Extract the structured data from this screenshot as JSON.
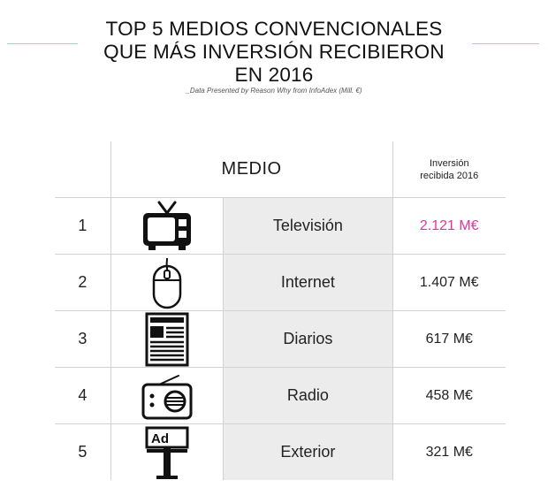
{
  "title_lines": [
    "TOP 5 MEDIOS CONVENCIONALES",
    "QUE MÁS INVERSIÓN RECIBIERON",
    "EN 2016"
  ],
  "subtitle": "_Data Presented by Reason Why from InfoAdex (Mill. €)",
  "colors": {
    "highlight": "#e6349b",
    "decor_line": "#9fd0ee",
    "name_cell_bg": "#ececec"
  },
  "table": {
    "header_medio": "MEDIO",
    "header_inversion_line1": "Inversión",
    "header_inversion_line2": "recibida 2016",
    "rows": [
      {
        "rank": "1",
        "icon": "tv-icon",
        "name": "Televisión",
        "value": "2.121 M€"
      },
      {
        "rank": "2",
        "icon": "mouse-icon",
        "name": "Internet",
        "value": "1.407 M€"
      },
      {
        "rank": "3",
        "icon": "newspaper-icon",
        "name": "Diarios",
        "value": "617 M€"
      },
      {
        "rank": "4",
        "icon": "radio-icon",
        "name": "Radio",
        "value": "458 M€"
      },
      {
        "rank": "5",
        "icon": "billboard-icon",
        "name": "Exterior",
        "value": "321 M€"
      }
    ]
  },
  "chart_data": {
    "type": "table",
    "title": "TOP 5 MEDIOS CONVENCIONALES QUE MÁS INVERSIÓN RECIBIERON EN 2016",
    "subtitle": "_Data Presented by Reason Why from InfoAdex (Mill. €)",
    "columns": [
      "MEDIO",
      "Inversión recibida 2016"
    ],
    "categories": [
      "Televisión",
      "Internet",
      "Diarios",
      "Radio",
      "Exterior"
    ],
    "values": [
      2121,
      1407,
      617,
      458,
      321
    ],
    "unit": "M€"
  }
}
